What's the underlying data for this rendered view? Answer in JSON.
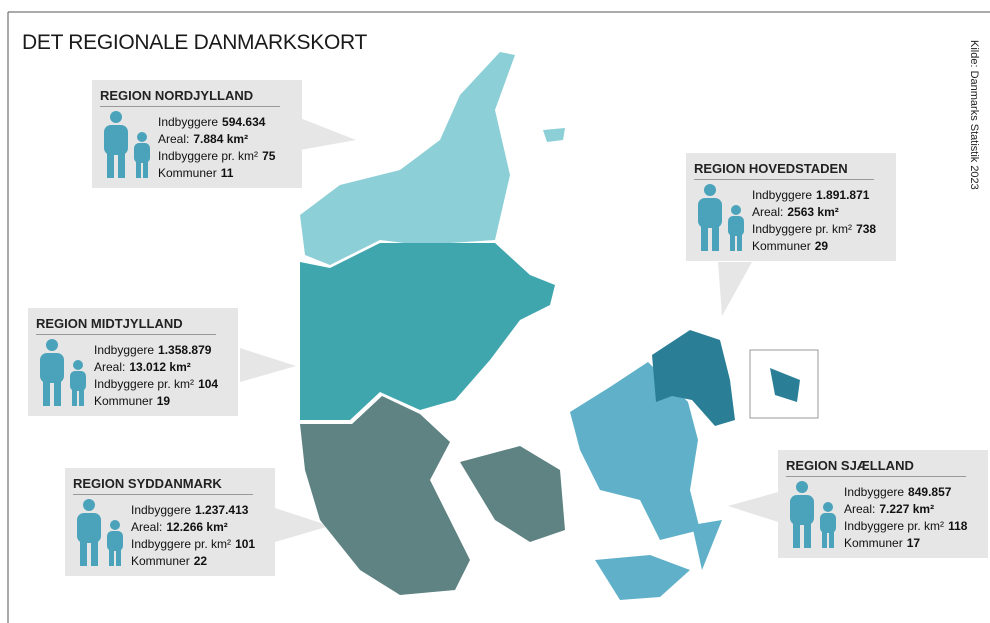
{
  "title": "DET REGIONALE DANMARKSKORT",
  "source": "Kilde: Danmarks Statistik 2023",
  "regions": [
    {
      "name": "REGION NORDJYLLAND",
      "rows": [
        {
          "label": "Indbyggere",
          "value": "594.634"
        },
        {
          "label": "Areal:",
          "value": "7.884 km²"
        },
        {
          "label": "Indbyggere pr. km²",
          "value": "75"
        },
        {
          "label": "Kommuner",
          "value": "11"
        }
      ]
    },
    {
      "name": "REGION HOVEDSTADEN",
      "rows": [
        {
          "label": "Indbyggere",
          "value": "1.891.871"
        },
        {
          "label": "Areal:",
          "value": "2563 km²"
        },
        {
          "label": "Indbyggere pr. km²",
          "value": "738"
        },
        {
          "label": "Kommuner",
          "value": "29"
        }
      ]
    },
    {
      "name": "REGION MIDTJYLLAND",
      "rows": [
        {
          "label": "Indbyggere",
          "value": "1.358.879"
        },
        {
          "label": "Areal:",
          "value": "13.012 km²"
        },
        {
          "label": "Indbyggere pr. km²",
          "value": "104"
        },
        {
          "label": "Kommuner",
          "value": "19"
        }
      ]
    },
    {
      "name": "REGION SYDDANMARK",
      "rows": [
        {
          "label": "Indbyggere",
          "value": "1.237.413"
        },
        {
          "label": "Areal:",
          "value": "12.266 km²"
        },
        {
          "label": "Indbyggere pr. km²",
          "value": "101"
        },
        {
          "label": "Kommuner",
          "value": "22"
        }
      ]
    },
    {
      "name": "REGION SJÆLLAND",
      "rows": [
        {
          "label": "Indbyggere",
          "value": "849.857"
        },
        {
          "label": "Areal:",
          "value": "7.227 km²"
        },
        {
          "label": "Indbyggere pr. km²",
          "value": "118"
        },
        {
          "label": "Kommuner",
          "value": "17"
        }
      ]
    }
  ]
}
